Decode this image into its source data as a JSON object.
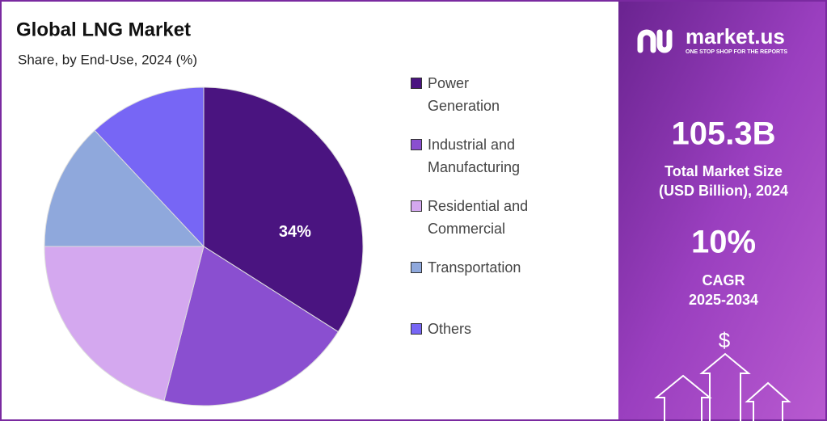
{
  "chart_data": {
    "type": "pie",
    "title": "Global LNG Market",
    "subtitle": "Share, by End-Use, 2024 (%)",
    "categories": [
      "Power Generation",
      "Industrial and Manufacturing",
      "Residential and Commercial",
      "Transportation",
      "Others"
    ],
    "values": [
      34,
      20,
      21,
      13,
      12
    ],
    "value_labels": [
      "34%",
      null,
      null,
      null,
      null
    ],
    "colors": [
      "#4a1480",
      "#8a4fd0",
      "#d4a8ef",
      "#8fa8dc",
      "#7766f5"
    ],
    "legend": "right"
  },
  "panel": {
    "brand": "market.us",
    "tagline": "ONE STOP SHOP FOR THE REPORTS",
    "market_size": "105.3B",
    "market_size_label_1": "Total Market Size",
    "market_size_label_2": "(USD Billion), 2024",
    "cagr": "10%",
    "cagr_label": "CAGR",
    "cagr_period": "2025-2034",
    "icon_symbol": "$"
  }
}
